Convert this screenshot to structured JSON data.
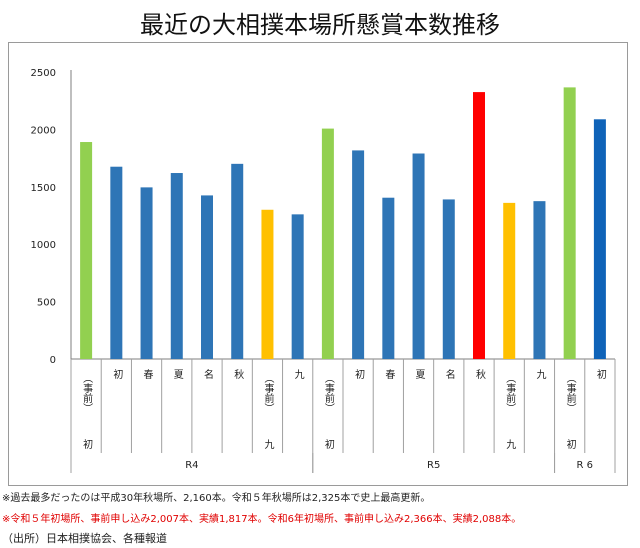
{
  "chart_data": {
    "type": "bar",
    "title": "最近の大相撲本場所懸賞本数推移",
    "ylim": [
      0,
      2500
    ],
    "yticks": [
      0,
      500,
      1000,
      1500,
      2000,
      2500
    ],
    "categories": [
      {
        "label": "初",
        "sublabel": "（事前）",
        "group": "R4",
        "value": 1890,
        "color": "#92d050"
      },
      {
        "label": "初",
        "group": "R4",
        "value": 1675,
        "color": "#2e75b6"
      },
      {
        "label": "春",
        "group": "R4",
        "value": 1495,
        "color": "#2e75b6"
      },
      {
        "label": "夏",
        "group": "R4",
        "value": 1620,
        "color": "#2e75b6"
      },
      {
        "label": "名",
        "group": "R4",
        "value": 1425,
        "color": "#2e75b6"
      },
      {
        "label": "秋",
        "group": "R4",
        "value": 1700,
        "color": "#2e75b6"
      },
      {
        "label": "九",
        "sublabel": "（事前）",
        "group": "R4",
        "value": 1300,
        "color": "#ffc000"
      },
      {
        "label": "九",
        "group": "R4",
        "value": 1260,
        "color": "#2e75b6"
      },
      {
        "label": "初",
        "sublabel": "（事前）",
        "group": "R5",
        "value": 2007,
        "color": "#92d050"
      },
      {
        "label": "初",
        "group": "R5",
        "value": 1817,
        "color": "#2e75b6"
      },
      {
        "label": "春",
        "group": "R5",
        "value": 1405,
        "color": "#2e75b6"
      },
      {
        "label": "夏",
        "group": "R5",
        "value": 1790,
        "color": "#2e75b6"
      },
      {
        "label": "名",
        "group": "R5",
        "value": 1390,
        "color": "#2e75b6"
      },
      {
        "label": "秋",
        "group": "R5",
        "value": 2325,
        "color": "#ff0000"
      },
      {
        "label": "九",
        "sublabel": "（事前）",
        "group": "R5",
        "value": 1360,
        "color": "#ffc000"
      },
      {
        "label": "九",
        "group": "R5",
        "value": 1375,
        "color": "#2e75b6"
      },
      {
        "label": "初",
        "sublabel": "（事前）",
        "group": "R 6",
        "value": 2366,
        "color": "#92d050"
      },
      {
        "label": "初",
        "group": "R 6",
        "value": 2088,
        "color": "#0f63b8"
      }
    ],
    "groups": [
      "R4",
      "R5",
      "R 6"
    ]
  },
  "notes": {
    "note1": "※過去最多だったのは平成30年秋場所、2,160本。令和５年秋場所は2,325本で史上最高更新。",
    "note2": "※令和５年初場所、事前申し込み2,007本、実績1,817本。令和6年初場所、事前申し込み2,366本、実績2,088本。",
    "source": "（出所）日本相撲協会、各種報道"
  }
}
